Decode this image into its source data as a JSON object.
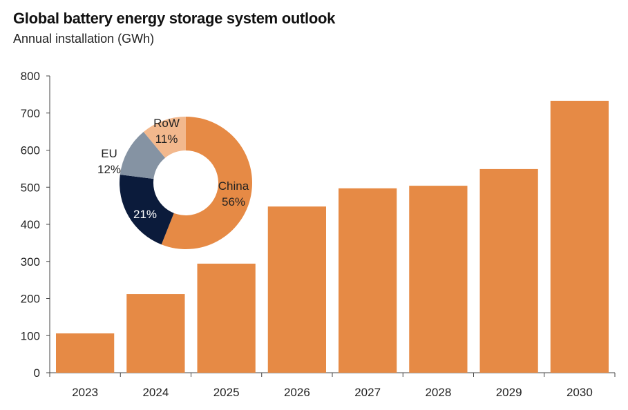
{
  "chart_data": {
    "type": "bar",
    "title": "Global battery energy storage system outlook",
    "subtitle": "Annual installation (GWh)",
    "xlabel": "",
    "ylabel": "Annual installation (GWh)",
    "ylim": [
      0,
      800
    ],
    "yticks": [
      0,
      100,
      200,
      300,
      400,
      500,
      600,
      700,
      800
    ],
    "categories": [
      "2023",
      "2024",
      "2025",
      "2026",
      "2027",
      "2028",
      "2029",
      "2030"
    ],
    "values": [
      106,
      212,
      294,
      448,
      497,
      504,
      549,
      733
    ],
    "bar_color": "#E68A45",
    "grid": false,
    "inset": {
      "type": "donut",
      "slices": [
        {
          "name": "China",
          "value": 56,
          "label": "56%",
          "color": "#E68A45",
          "show_name": true
        },
        {
          "name": "",
          "value": 21,
          "label": "21%",
          "color": "#0B1B3B",
          "show_name": false
        },
        {
          "name": "EU",
          "value": 12,
          "label": "12%",
          "color": "#8593A3",
          "show_name": true
        },
        {
          "name": "RoW",
          "value": 11,
          "label": "11%",
          "color": "#F2B88D",
          "show_name": true
        }
      ]
    }
  }
}
